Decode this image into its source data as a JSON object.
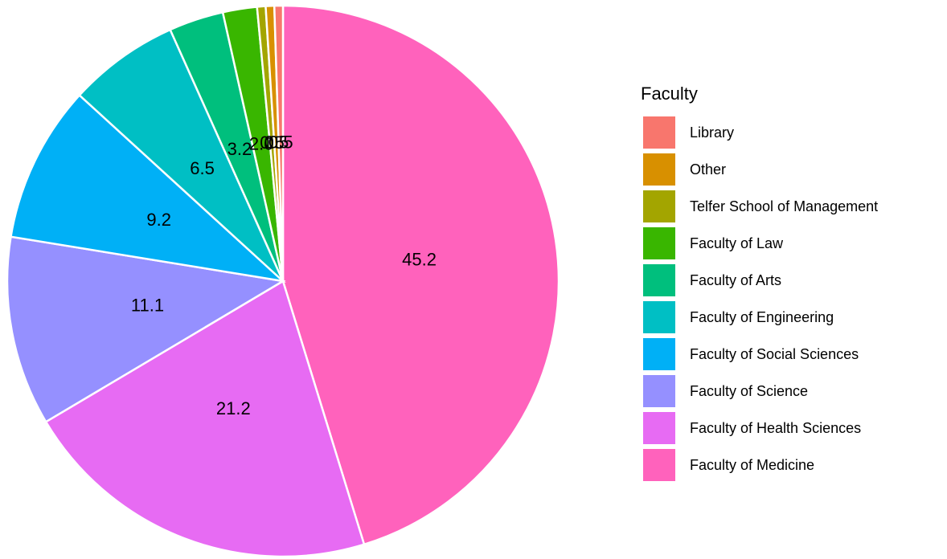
{
  "chart_data": {
    "type": "pie",
    "legend_title": "Faculty",
    "categories": [
      "Library",
      "Other",
      "Telfer School of Management",
      "Faculty of Law",
      "Faculty of Arts",
      "Faculty of Engineering",
      "Faculty of Social Sciences",
      "Faculty of Science",
      "Faculty of Health Sciences",
      "Faculty of Medicine"
    ],
    "values": [
      0.5,
      0.5,
      0.5,
      2.0,
      3.2,
      6.5,
      9.2,
      11.1,
      21.2,
      45.2
    ],
    "value_labels": [
      "0.5",
      "0.5",
      "0.5",
      "2.0",
      "3.2",
      "6.5",
      "9.2",
      "11.1",
      "21.2",
      "45.2"
    ],
    "colors": [
      "#F8766D",
      "#D89000",
      "#A3A500",
      "#39B600",
      "#00BF7D",
      "#00BFC4",
      "#00B0F6",
      "#9590FF",
      "#E76BF3",
      "#FF62BC"
    ],
    "legend": "right"
  }
}
